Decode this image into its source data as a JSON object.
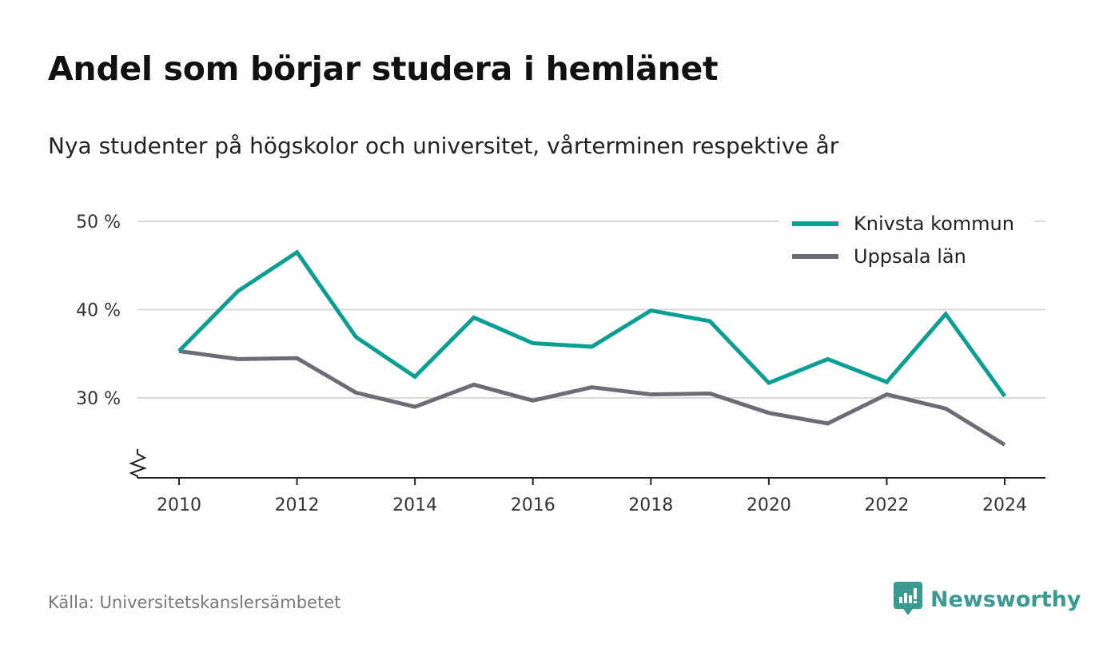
{
  "header": {
    "title": "Andel som börjar studera i hemlänet",
    "subtitle": "Nya studenter på högskolor och universitet, vårterminen respektive år"
  },
  "footer": {
    "source": "Källa: Universitetskanslersämbetet",
    "brand": "Newsworthy",
    "brand_color": "#3a9a92"
  },
  "chart_data": {
    "type": "line",
    "title": "Andel som börjar studera i hemlänet",
    "subtitle": "Nya studenter på högskolor och universitet, vårterminen respektive år",
    "xlabel": "",
    "ylabel": "",
    "x": [
      2010,
      2011,
      2012,
      2013,
      2014,
      2015,
      2016,
      2017,
      2018,
      2019,
      2020,
      2021,
      2022,
      2023,
      2024
    ],
    "series": [
      {
        "name": "Knivsta kommun",
        "color": "#0b9e92",
        "values": [
          35.3,
          42.1,
          46.5,
          36.9,
          32.4,
          39.1,
          36.2,
          35.8,
          39.9,
          38.7,
          31.7,
          34.4,
          31.8,
          39.5,
          30.2
        ]
      },
      {
        "name": "Uppsala län",
        "color": "#6d6c74",
        "values": [
          35.3,
          34.4,
          34.5,
          30.6,
          29.0,
          31.5,
          29.7,
          31.2,
          30.4,
          30.5,
          28.3,
          27.1,
          30.4,
          28.8,
          24.7
        ]
      }
    ],
    "xticks": [
      2010,
      2012,
      2014,
      2016,
      2018,
      2020,
      2022,
      2024
    ],
    "yticks": [
      30,
      40,
      50
    ],
    "ytick_labels": [
      "30 %",
      "40 %",
      "50 %"
    ],
    "xlim": [
      2009.3,
      2024.7
    ],
    "ylim": [
      21,
      50
    ],
    "y_axis_break": true,
    "grid": "horizontal",
    "legend_position": "top-right"
  }
}
